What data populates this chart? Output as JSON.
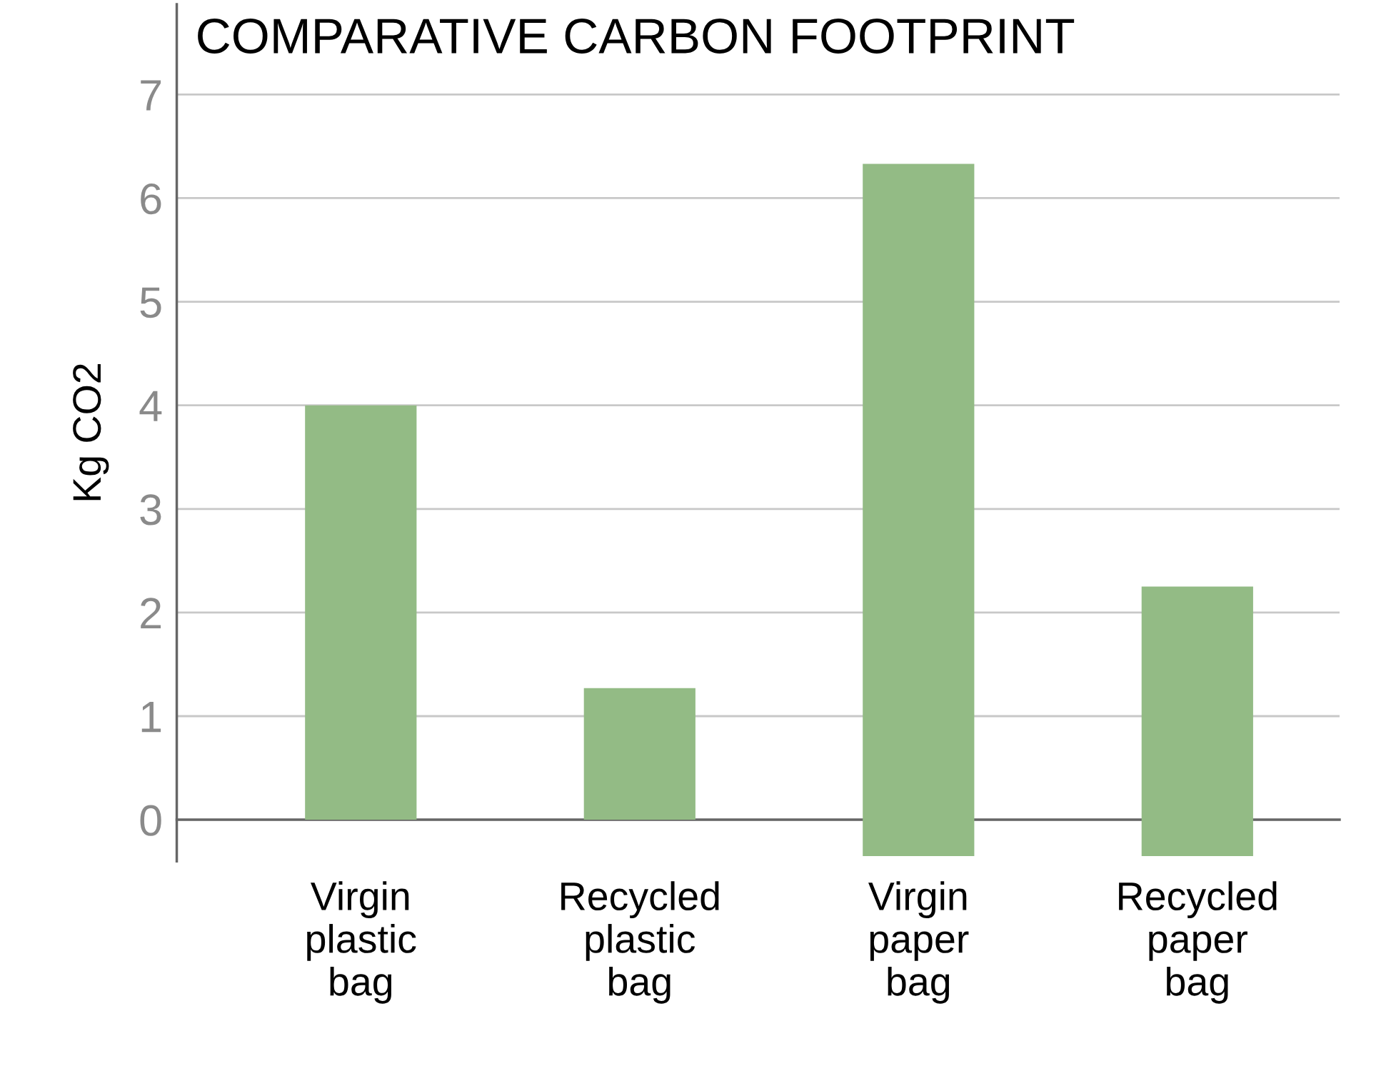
{
  "chart_data": {
    "type": "bar",
    "title": "COMPARATIVE CARBON FOOTPRINT",
    "ylabel": "Kg CO2",
    "categories": [
      "Virgin\nplastic\nbag",
      "Recycled\nplastic\nbag",
      "Virgin\npaper\nbag",
      "Recycled\npaper\nbag"
    ],
    "values": [
      4.0,
      1.27,
      6.68,
      2.6
    ],
    "base": [
      0,
      0,
      -0.35,
      -0.35
    ],
    "color": "#93bb85",
    "ylim": [
      -0.4,
      7.87
    ],
    "yticks": [
      0,
      1,
      2,
      3,
      4,
      5,
      6,
      7
    ],
    "grid": "y"
  }
}
